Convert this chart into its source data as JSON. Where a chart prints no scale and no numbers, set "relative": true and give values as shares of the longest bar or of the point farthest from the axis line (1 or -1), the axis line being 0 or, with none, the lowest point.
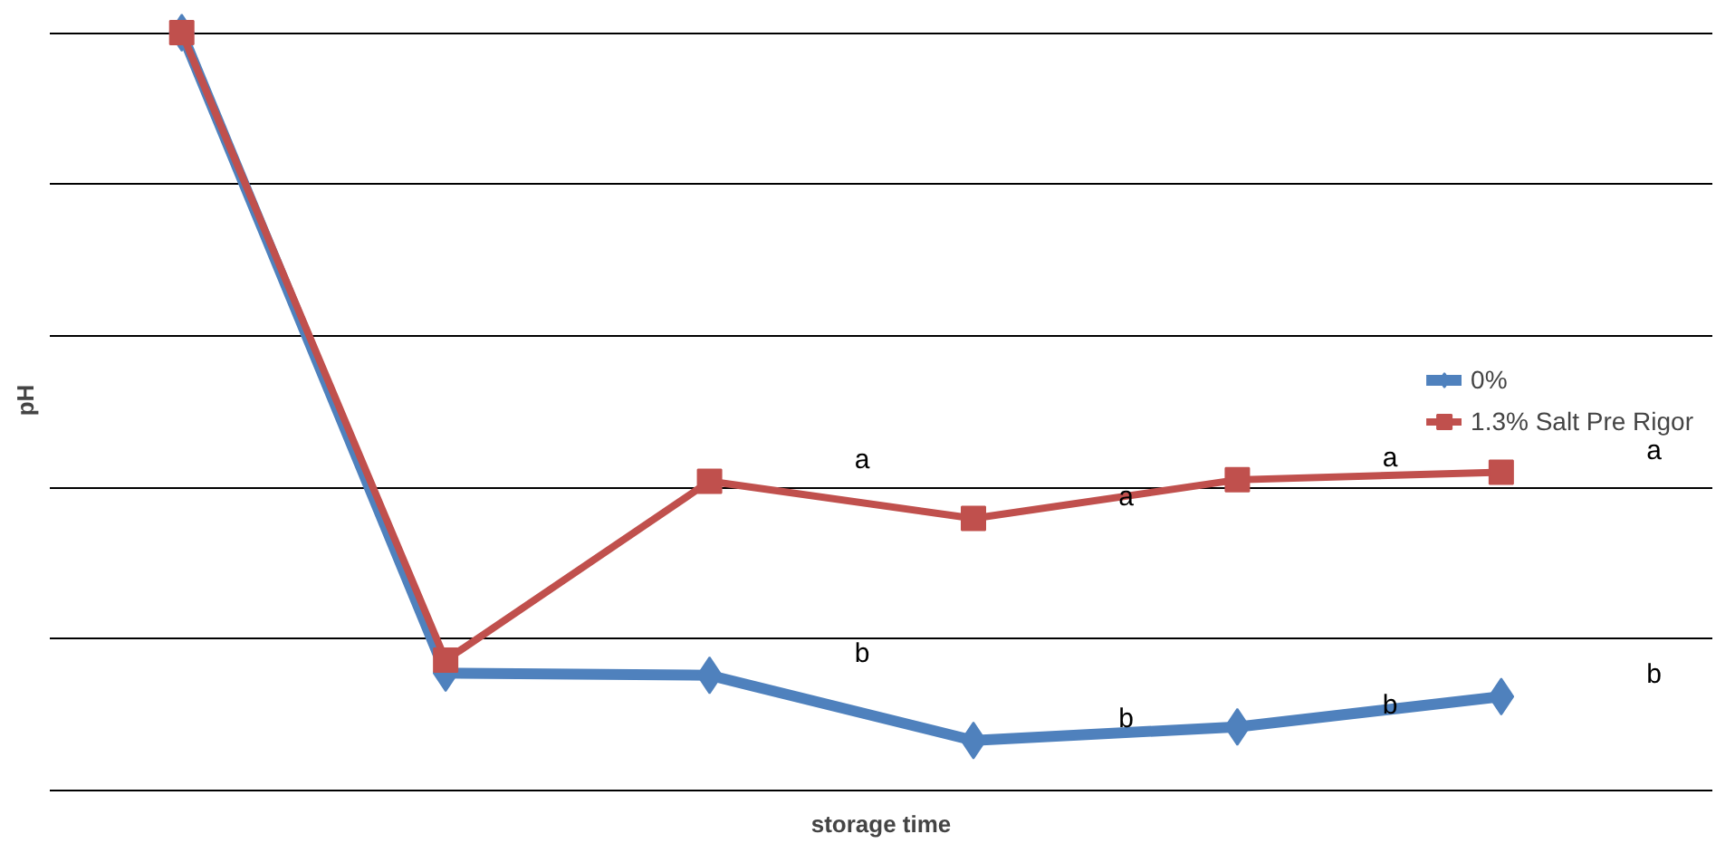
{
  "chart_data": {
    "type": "line",
    "relative": true,
    "xlabel": "storage time",
    "ylabel": "pH",
    "categories": [
      null,
      null,
      null,
      null,
      null,
      null
    ],
    "series": [
      {
        "name": "0%",
        "color": "#4f81bd",
        "marker": "diamond",
        "values": [
          1.0,
          0.155,
          0.152,
          0.066,
          0.084,
          0.124
        ]
      },
      {
        "name": "1.3% Salt Pre Rigor",
        "color": "#c0504d",
        "marker": "square",
        "values": [
          1.0,
          0.172,
          0.408,
          0.359,
          0.41,
          0.42
        ]
      }
    ],
    "annotations": [
      "a",
      "a",
      "a",
      "a",
      "b",
      "b",
      "b",
      "b"
    ],
    "grid": "y",
    "legend": "right"
  }
}
